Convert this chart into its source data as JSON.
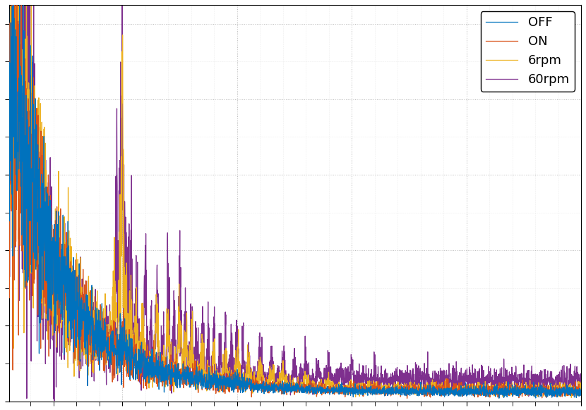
{
  "legend_labels": [
    "OFF",
    "ON",
    "6rpm",
    "60rpm"
  ],
  "colors": [
    "#0072BD",
    "#D95319",
    "#EDB120",
    "#7E2F8E"
  ],
  "background_color": "#ffffff",
  "figsize": [
    8.3,
    5.82
  ],
  "dpi": 100,
  "legend_fontsize": 13,
  "legend_loc": "upper right",
  "xlim": [
    1,
    500
  ],
  "grid_color": "#aaaaaa",
  "seed_off": 10,
  "seed_on": 20,
  "seed_6": 30,
  "seed_60": 40
}
